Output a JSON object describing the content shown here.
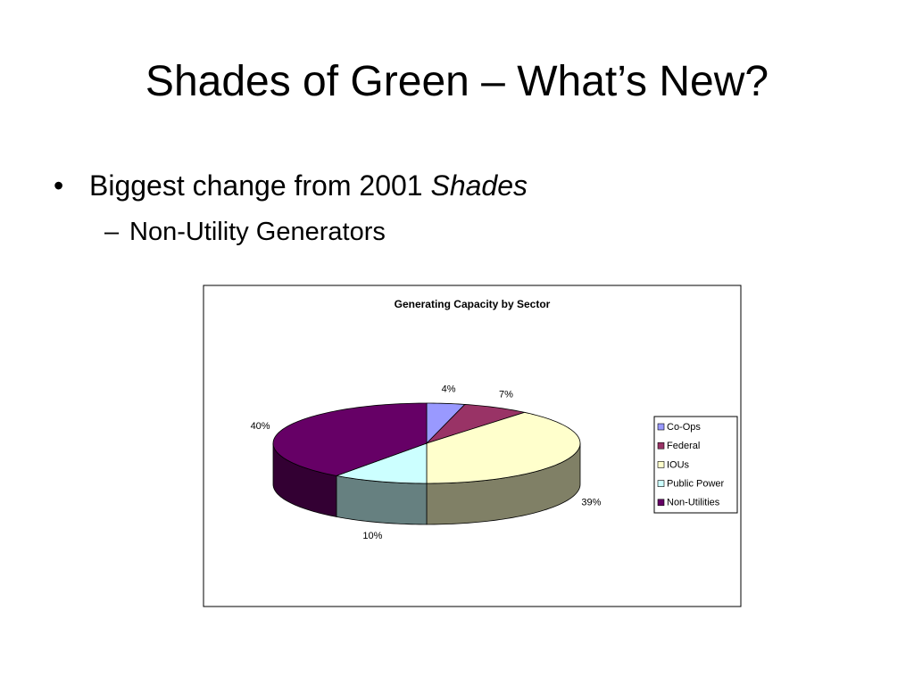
{
  "slide": {
    "title": "Shades of Green – What’s New?",
    "bullets": [
      {
        "text": "Biggest change from 2001",
        "italic": "Shades",
        "sub": [
          "Non-Utility Generators"
        ]
      }
    ]
  },
  "chart_data": {
    "type": "pie",
    "title": "Generating Capacity by Sector",
    "categories": [
      "Co-Ops",
      "Federal",
      "IOUs",
      "Public Power",
      "Non-Utilities"
    ],
    "values": [
      4,
      7,
      39,
      10,
      40
    ],
    "value_labels": [
      "4%",
      "7%",
      "39%",
      "10%",
      "40%"
    ],
    "colors": [
      "#9999ff",
      "#993366",
      "#ffffcc",
      "#ccffff",
      "#660066"
    ],
    "legend": "right"
  }
}
